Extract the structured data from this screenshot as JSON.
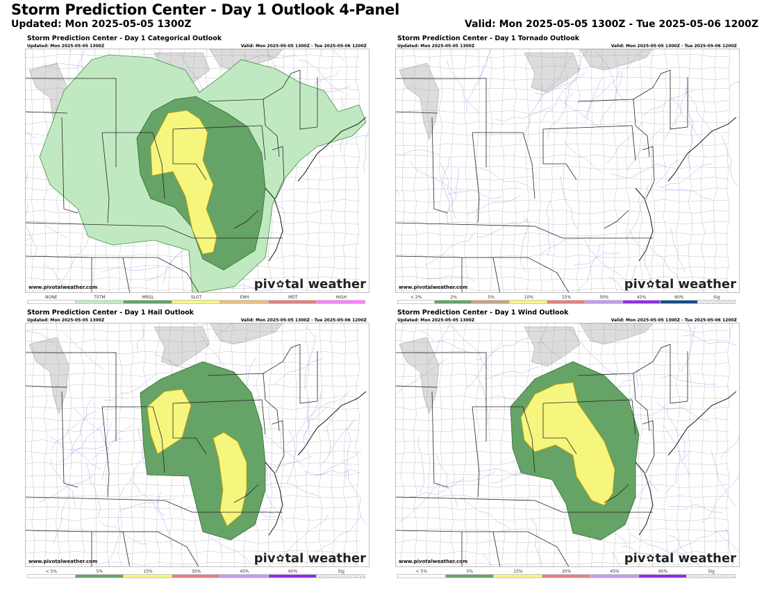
{
  "header": {
    "title": "Storm Prediction Center - Day 1 Outlook 4-Panel",
    "updated": "Updated: Mon 2025-05-05 1300Z",
    "valid": "Valid: Mon 2025-05-05 1300Z - Tue 2025-05-06 1200Z"
  },
  "colors": {
    "land": "#ffffff",
    "lake": "#dcdcdc",
    "state_line": "#222222",
    "county_line": "#a8a8a8",
    "road_line": "#8a8aef",
    "tstm": "#c1e9c1",
    "mrgl": "#66a366",
    "slgt_hail_15": "#f6f67f",
    "outline": "#2d6e2d"
  },
  "panels": [
    {
      "id": "categorical",
      "title": "Storm Prediction Center - Day 1 Categorical Outlook",
      "updated": "Updated: Mon 2025-05-05 1300Z",
      "valid": "Valid: Mon 2025-05-05 1300Z - Tue 2025-05-06 1200Z",
      "credit": "www.pivotalweather.com",
      "logo_left": "piv",
      "logo_right": "tal weather",
      "logo_icon": "pivotal-flower-icon",
      "legend": [
        {
          "label": "NONE",
          "color": "#ffffff"
        },
        {
          "label": "TSTM",
          "color": "#c1e9c1"
        },
        {
          "label": "MRGL",
          "color": "#66a366"
        },
        {
          "label": "SLGT",
          "color": "#f6f67f"
        },
        {
          "label": "ENH",
          "color": "#e6c27f"
        },
        {
          "label": "MDT",
          "color": "#e67f7f"
        },
        {
          "label": "HIGH",
          "color": "#ff80ff"
        }
      ],
      "risk_areas_present": [
        "TSTM",
        "MRGL",
        "SLGT"
      ]
    },
    {
      "id": "tornado",
      "title": "Storm Prediction Center - Day 1 Tornado Outlook",
      "updated": "Updated: Mon 2025-05-05 1300Z",
      "valid": "Valid: Mon 2025-05-05 1300Z - Tue 2025-05-06 1200Z",
      "credit": "www.pivotalweather.com",
      "logo_left": "piv",
      "logo_right": "tal weather",
      "logo_icon": "pivotal-flower-icon",
      "legend": [
        {
          "label": "< 2%",
          "color": "#ffffff"
        },
        {
          "label": "2%",
          "color": "#66a366"
        },
        {
          "label": "5%",
          "color": "#c4a484"
        },
        {
          "label": "10%",
          "color": "#f6f67f"
        },
        {
          "label": "15%",
          "color": "#e67f7f"
        },
        {
          "label": "30%",
          "color": "#c39bef"
        },
        {
          "label": "45%",
          "color": "#912cee"
        },
        {
          "label": "60%",
          "color": "#104e8b"
        },
        {
          "label": "Sig",
          "color": "hatch"
        }
      ],
      "risk_areas_present": []
    },
    {
      "id": "hail",
      "title": "Storm Prediction Center - Day 1 Hail Outlook",
      "updated": "Updated: Mon 2025-05-05 1300Z",
      "valid": "Valid: Mon 2025-05-05 1300Z - Tue 2025-05-06 1200Z",
      "credit": "www.pivotalweather.com",
      "logo_left": "piv",
      "logo_right": "tal weather",
      "logo_icon": "pivotal-flower-icon",
      "legend": [
        {
          "label": "< 5%",
          "color": "#ffffff"
        },
        {
          "label": "5%",
          "color": "#66a366"
        },
        {
          "label": "15%",
          "color": "#f6f67f"
        },
        {
          "label": "30%",
          "color": "#e67f7f"
        },
        {
          "label": "45%",
          "color": "#c39bef"
        },
        {
          "label": "60%",
          "color": "#912cee"
        },
        {
          "label": "Sig",
          "color": "hatch"
        }
      ],
      "risk_areas_present": [
        "5%",
        "15%"
      ]
    },
    {
      "id": "wind",
      "title": "Storm Prediction Center - Day 1 Wind Outlook",
      "updated": "Updated: Mon 2025-05-05 1300Z",
      "valid": "Valid: Mon 2025-05-05 1300Z - Tue 2025-05-06 1200Z",
      "credit": "www.pivotalweather.com",
      "logo_left": "piv",
      "logo_right": "tal weather",
      "logo_icon": "pivotal-flower-icon",
      "legend": [
        {
          "label": "< 5%",
          "color": "#ffffff"
        },
        {
          "label": "5%",
          "color": "#66a366"
        },
        {
          "label": "15%",
          "color": "#f6f67f"
        },
        {
          "label": "30%",
          "color": "#e67f7f"
        },
        {
          "label": "45%",
          "color": "#c39bef"
        },
        {
          "label": "60%",
          "color": "#912cee"
        },
        {
          "label": "Sig",
          "color": "hatch"
        }
      ],
      "risk_areas_present": [
        "5%",
        "15%"
      ]
    }
  ]
}
